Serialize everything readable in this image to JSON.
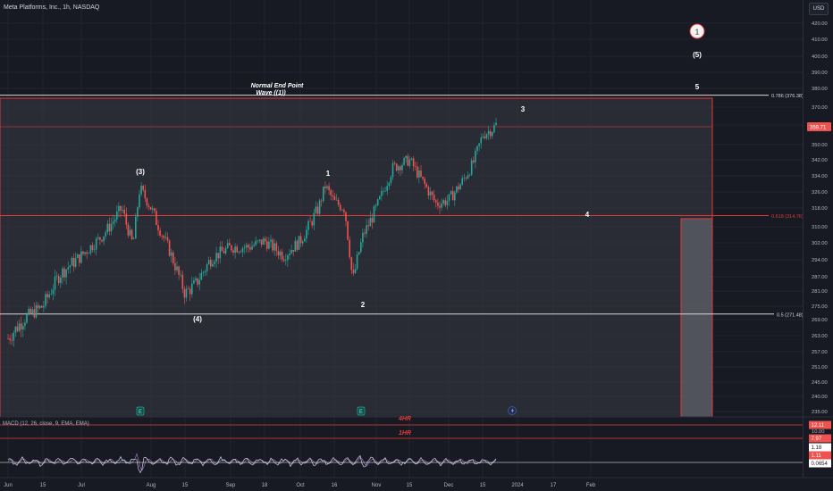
{
  "header": {
    "title": "Meta Platforms, Inc., 1h, NASDAQ",
    "currency": "USD"
  },
  "indicator": {
    "macd_label": "MACD (12, 26, close, 9, EMA, EMA)"
  },
  "annotations": {
    "normal_end_1": "Normal End Point",
    "normal_end_2": "Wave ((1))",
    "circle_1": "1",
    "wave_5_paren": "(5)",
    "wave_5": "5",
    "wave_3": "3",
    "wave_3_paren": "(3)",
    "wave_1": "1",
    "wave_4": "4",
    "wave_4_paren": "(4)",
    "wave_2": "2",
    "label_4hr": "4HR",
    "label_1hr": "1HR"
  },
  "fib_levels": [
    {
      "label": "0.786 (376.38)",
      "price": 376.38
    },
    {
      "label": "0.618 (314.76)",
      "price": 314.76
    },
    {
      "label": "0.5 (271.48)",
      "price": 271.48
    }
  ],
  "earnings_markers": [
    "E",
    "E"
  ],
  "colors": {
    "up": "#26a69a",
    "down": "#ef5350",
    "fib_red": "#e03a3a",
    "background": "#171a23",
    "box": "#3a3d46",
    "macd": "#d1d4dc",
    "signal": "#9c6bbf"
  },
  "chart_data": {
    "type": "candlestick",
    "title": "Meta Platforms, Inc., 1h, NASDAQ",
    "last_price": 359.71,
    "y_ticks": [
      420.0,
      410.0,
      400.0,
      390.0,
      380.0,
      370.0,
      360.0,
      350.0,
      342.0,
      334.0,
      326.0,
      318.0,
      310.0,
      302.0,
      294.0,
      287.0,
      281.0,
      275.0,
      269.0,
      263.0,
      257.0,
      251.0,
      245.0,
      240.0,
      235.0
    ],
    "y_tick_labels": [
      "420.00",
      "410.00",
      "400.00",
      "390.00",
      "380.00",
      "370.00",
      "360.00",
      "350.00",
      "342.00",
      "334.00",
      "326.00",
      "318.00",
      "310.00",
      "302.00",
      "294.00",
      "287.00",
      "281.00",
      "275.00",
      "269.00",
      "263.00",
      "257.00",
      "251.00",
      "245.00",
      "240.00",
      "235.00"
    ],
    "x_labels": [
      "Jun",
      "15",
      "Jul",
      "Aug",
      "15",
      "Sep",
      "18",
      "Oct",
      "16",
      "Nov",
      "15",
      "Dec",
      "15",
      "2024",
      "17",
      "Feb"
    ],
    "x_dates": [
      "2023-06-01",
      "2023-06-15",
      "2023-07-01",
      "2023-08-01",
      "2023-08-15",
      "2023-09-01",
      "2023-09-18",
      "2023-10-01",
      "2023-10-16",
      "2023-11-01",
      "2023-11-15",
      "2023-12-01",
      "2023-12-15",
      "2024-01-01",
      "2024-01-17",
      "2024-02-01"
    ],
    "path_dates": [
      "2023-06-01",
      "2023-06-08",
      "2023-06-15",
      "2023-06-22",
      "2023-07-01",
      "2023-07-10",
      "2023-07-19",
      "2023-07-24",
      "2023-07-27",
      "2023-08-01",
      "2023-08-08",
      "2023-08-15",
      "2023-08-19",
      "2023-08-25",
      "2023-09-01",
      "2023-09-10",
      "2023-09-18",
      "2023-09-25",
      "2023-10-01",
      "2023-10-09",
      "2023-10-12",
      "2023-10-16",
      "2023-10-20",
      "2023-10-23",
      "2023-10-27",
      "2023-11-01",
      "2023-11-08",
      "2023-11-15",
      "2023-11-20",
      "2023-11-26",
      "2023-12-01",
      "2023-12-06",
      "2023-12-11",
      "2023-12-15",
      "2023-12-20",
      "2023-12-22"
    ],
    "path_prices": [
      262,
      270,
      275,
      288,
      296,
      305,
      318,
      301,
      328,
      318,
      300,
      280,
      284,
      295,
      300,
      300,
      303,
      296,
      303,
      318,
      329,
      321,
      318,
      285,
      306,
      318,
      338,
      342,
      332,
      320,
      322,
      330,
      340,
      355,
      358,
      361
    ],
    "macd": {
      "levels": [
        {
          "label": "12.11",
          "value": 12.11,
          "color": "#ef5350"
        },
        {
          "label": "10.00",
          "value": 10.0,
          "color": null
        },
        {
          "label": "7.97",
          "value": 7.97,
          "color": "#ef5350"
        },
        {
          "label": "1.18",
          "value": 1.18,
          "color": "#ffffff"
        },
        {
          "label": "1.11",
          "value": 1.11,
          "color": "#ef5350"
        },
        {
          "label": "0.0654",
          "value": 0.0654,
          "color": "#ffffff"
        }
      ]
    }
  }
}
